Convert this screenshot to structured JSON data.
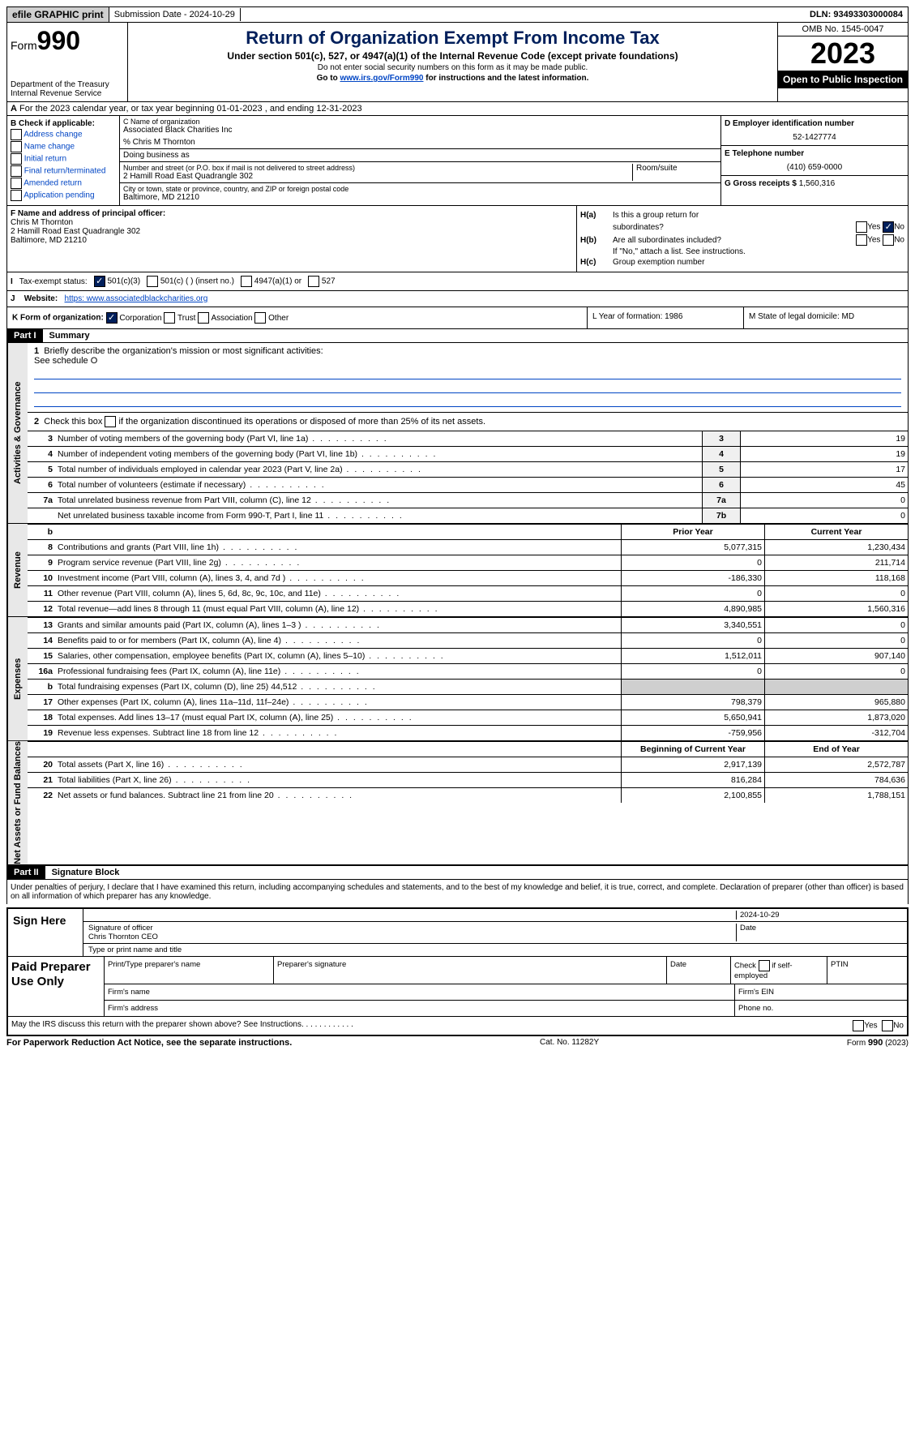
{
  "topbar": {
    "efile": "efile GRAPHIC print",
    "submission": "Submission Date - 2024-10-29",
    "dln": "DLN: 93493303000084"
  },
  "header": {
    "form_prefix": "Form",
    "form_number": "990",
    "dept1": "Department of the Treasury",
    "dept2": "Internal Revenue Service",
    "title": "Return of Organization Exempt From Income Tax",
    "subtitle": "Under section 501(c), 527, or 4947(a)(1) of the Internal Revenue Code (except private foundations)",
    "note1": "Do not enter social security numbers on this form as it may be made public.",
    "note2_pre": "Go to ",
    "note2_link": "www.irs.gov/Form990",
    "note2_post": " for instructions and the latest information.",
    "omb": "OMB No. 1545-0047",
    "year": "2023",
    "open": "Open to Public Inspection"
  },
  "lineA": "For the 2023 calendar year, or tax year beginning 01-01-2023    , and ending 12-31-2023",
  "boxB": {
    "label": "B Check if applicable:",
    "opts": [
      "Address change",
      "Name change",
      "Initial return",
      "Final return/terminated",
      "Amended return",
      "Application pending"
    ]
  },
  "boxC": {
    "label_name": "C Name of organization",
    "org": "Associated Black Charities Inc",
    "care_of": "% Chris M Thornton",
    "dba_lbl": "Doing business as",
    "addr_lbl": "Number and street (or P.O. box if mail is not delivered to street address)",
    "room_lbl": "Room/suite",
    "addr": "2 Hamill Road East Quadrangle 302",
    "city_lbl": "City or town, state or province, country, and ZIP or foreign postal code",
    "city": "Baltimore, MD  21210"
  },
  "boxD": {
    "label": "D Employer identification number",
    "val": "52-1427774"
  },
  "boxE": {
    "label": "E Telephone number",
    "val": "(410) 659-0000"
  },
  "boxG": {
    "label": "G Gross receipts $",
    "val": "1,560,316"
  },
  "boxF": {
    "label": "F  Name and address of principal officer:",
    "name": "Chris M Thornton",
    "addr1": "2 Hamill Road East Quadrangle 302",
    "addr2": "Baltimore, MD  21210"
  },
  "boxH": {
    "a_lbl": "H(a)",
    "a_txt1": "Is this a group return for",
    "a_txt2": "subordinates?",
    "b_lbl": "H(b)",
    "b_txt": "Are all subordinates included?",
    "b_note": "If \"No,\" attach a list. See instructions.",
    "c_lbl": "H(c)",
    "c_txt": "Group exemption number",
    "yes": "Yes",
    "no": "No"
  },
  "lineI": {
    "label": "Tax-exempt status:",
    "o1": "501(c)(3)",
    "o2": "501(c) (  ) (insert no.)",
    "o3": "4947(a)(1) or",
    "o4": "527"
  },
  "lineJ": {
    "label": "Website:",
    "val": "https: www.associatedblackcharities.org"
  },
  "lineK": {
    "label": "K Form of organization:",
    "o1": "Corporation",
    "o2": "Trust",
    "o3": "Association",
    "o4": "Other"
  },
  "lineL": "L Year of formation: 1986",
  "lineM": "M State of legal domicile: MD",
  "part1": {
    "hdr": "Part I",
    "title": "Summary",
    "vert": {
      "gov": "Activities & Governance",
      "rev": "Revenue",
      "exp": "Expenses",
      "net": "Net Assets or Fund Balances"
    },
    "q1": "Briefly describe the organization's mission or most significant activities:",
    "q1_val": "See schedule O",
    "q2": "Check this box         if the organization discontinued its operations or disposed of more than 25% of its net assets.",
    "lines_single": [
      {
        "n": "3",
        "d": "Number of voting members of the governing body (Part VI, line 1a)",
        "box": "3",
        "v": "19"
      },
      {
        "n": "4",
        "d": "Number of independent voting members of the governing body (Part VI, line 1b)",
        "box": "4",
        "v": "19"
      },
      {
        "n": "5",
        "d": "Total number of individuals employed in calendar year 2023 (Part V, line 2a)",
        "box": "5",
        "v": "17"
      },
      {
        "n": "6",
        "d": "Total number of volunteers (estimate if necessary)",
        "box": "6",
        "v": "45"
      },
      {
        "n": "7a",
        "d": "Total unrelated business revenue from Part VIII, column (C), line 12",
        "box": "7a",
        "v": "0"
      },
      {
        "n": "",
        "d": "Net unrelated business taxable income from Form 990-T, Part I, line 11",
        "box": "7b",
        "v": "0"
      }
    ],
    "col_hdr": {
      "b": "b",
      "prior": "Prior Year",
      "current": "Current Year"
    },
    "rev_lines": [
      {
        "n": "8",
        "d": "Contributions and grants (Part VIII, line 1h)",
        "c1": "5,077,315",
        "c2": "1,230,434"
      },
      {
        "n": "9",
        "d": "Program service revenue (Part VIII, line 2g)",
        "c1": "0",
        "c2": "211,714"
      },
      {
        "n": "10",
        "d": "Investment income (Part VIII, column (A), lines 3, 4, and 7d )",
        "c1": "-186,330",
        "c2": "118,168"
      },
      {
        "n": "11",
        "d": "Other revenue (Part VIII, column (A), lines 5, 6d, 8c, 9c, 10c, and 11e)",
        "c1": "0",
        "c2": "0"
      },
      {
        "n": "12",
        "d": "Total revenue—add lines 8 through 11 (must equal Part VIII, column (A), line 12)",
        "c1": "4,890,985",
        "c2": "1,560,316"
      }
    ],
    "exp_lines": [
      {
        "n": "13",
        "d": "Grants and similar amounts paid (Part IX, column (A), lines 1–3 )",
        "c1": "3,340,551",
        "c2": "0"
      },
      {
        "n": "14",
        "d": "Benefits paid to or for members (Part IX, column (A), line 4)",
        "c1": "0",
        "c2": "0"
      },
      {
        "n": "15",
        "d": "Salaries, other compensation, employee benefits (Part IX, column (A), lines 5–10)",
        "c1": "1,512,011",
        "c2": "907,140"
      },
      {
        "n": "16a",
        "d": "Professional fundraising fees (Part IX, column (A), line 11e)",
        "c1": "0",
        "c2": "0"
      },
      {
        "n": "b",
        "d": "Total fundraising expenses (Part IX, column (D), line 25) 44,512",
        "c1": "",
        "c2": "",
        "shade": true
      },
      {
        "n": "17",
        "d": "Other expenses (Part IX, column (A), lines 11a–11d, 11f–24e)",
        "c1": "798,379",
        "c2": "965,880"
      },
      {
        "n": "18",
        "d": "Total expenses. Add lines 13–17 (must equal Part IX, column (A), line 25)",
        "c1": "5,650,941",
        "c2": "1,873,020"
      },
      {
        "n": "19",
        "d": "Revenue less expenses. Subtract line 18 from line 12",
        "c1": "-759,956",
        "c2": "-312,704"
      }
    ],
    "net_hdr": {
      "c1": "Beginning of Current Year",
      "c2": "End of Year"
    },
    "net_lines": [
      {
        "n": "20",
        "d": "Total assets (Part X, line 16)",
        "c1": "2,917,139",
        "c2": "2,572,787"
      },
      {
        "n": "21",
        "d": "Total liabilities (Part X, line 26)",
        "c1": "816,284",
        "c2": "784,636"
      },
      {
        "n": "22",
        "d": "Net assets or fund balances. Subtract line 21 from line 20",
        "c1": "2,100,855",
        "c2": "1,788,151"
      }
    ]
  },
  "part2": {
    "hdr": "Part II",
    "title": "Signature Block",
    "decl": "Under penalties of perjury, I declare that I have examined this return, including accompanying schedules and statements, and to the best of my knowledge and belief, it is true, correct, and complete. Declaration of preparer (other than officer) is based on all information of which preparer has any knowledge.",
    "sign_here": "Sign Here",
    "sig_officer": "Signature of officer",
    "sig_name": "Chris Thornton CEO",
    "sig_type": "Type or print name and title",
    "sig_date_lbl": "Date",
    "sig_date": "2024-10-29",
    "paid": "Paid Preparer Use Only",
    "p_name": "Print/Type preparer's name",
    "p_sig": "Preparer's signature",
    "p_date": "Date",
    "p_check": "Check         if self-employed",
    "p_ptin": "PTIN",
    "p_firm": "Firm's name",
    "p_ein": "Firm's EIN",
    "p_addr": "Firm's address",
    "p_phone": "Phone no.",
    "may_irs": "May the IRS discuss this return with the preparer shown above? See Instructions.",
    "yes": "Yes",
    "no": "No"
  },
  "footer": {
    "pra": "For Paperwork Reduction Act Notice, see the separate instructions.",
    "cat": "Cat. No. 11282Y",
    "form": "Form 990 (2023)"
  }
}
